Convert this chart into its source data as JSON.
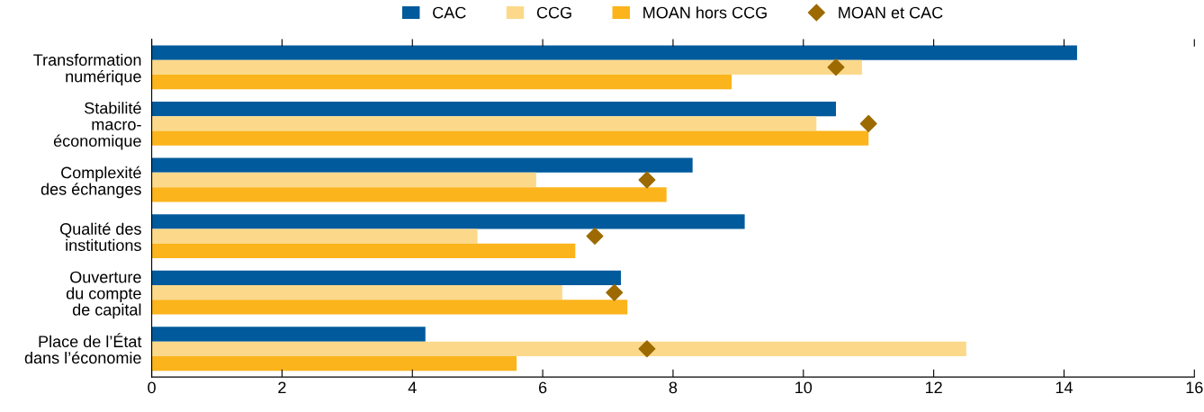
{
  "chart_data": {
    "type": "bar",
    "orientation": "horizontal",
    "categories": [
      "Transformation\nnumérique",
      "Stabilité\nmacro-\néconomique",
      "Complexité\ndes échanges",
      "Qualité des\ninstitutions",
      "Ouverture\ndu compte\nde capital",
      "Place de l’État\ndans l’économie"
    ],
    "series": [
      {
        "name": "CAC",
        "color": "#005a9c",
        "values": [
          14.2,
          10.5,
          8.3,
          9.1,
          7.2,
          4.2
        ]
      },
      {
        "name": "CCG",
        "color": "#fcd98a",
        "values": [
          10.9,
          10.2,
          5.9,
          5.0,
          6.3,
          12.5
        ]
      },
      {
        "name": "MOAN hors CCG",
        "color": "#fbb41c",
        "values": [
          8.9,
          11.0,
          7.9,
          6.5,
          7.3,
          5.6
        ]
      },
      {
        "name": "MOAN et CAC",
        "type": "scatter",
        "marker": "diamond",
        "color": "#9c6a00",
        "values": [
          10.5,
          11.0,
          7.6,
          6.8,
          7.1,
          7.6
        ]
      }
    ],
    "xlim": [
      0,
      16
    ],
    "xticks": [
      0,
      2,
      4,
      6,
      8,
      10,
      12,
      14,
      16
    ],
    "grid": false,
    "legend": "top"
  }
}
